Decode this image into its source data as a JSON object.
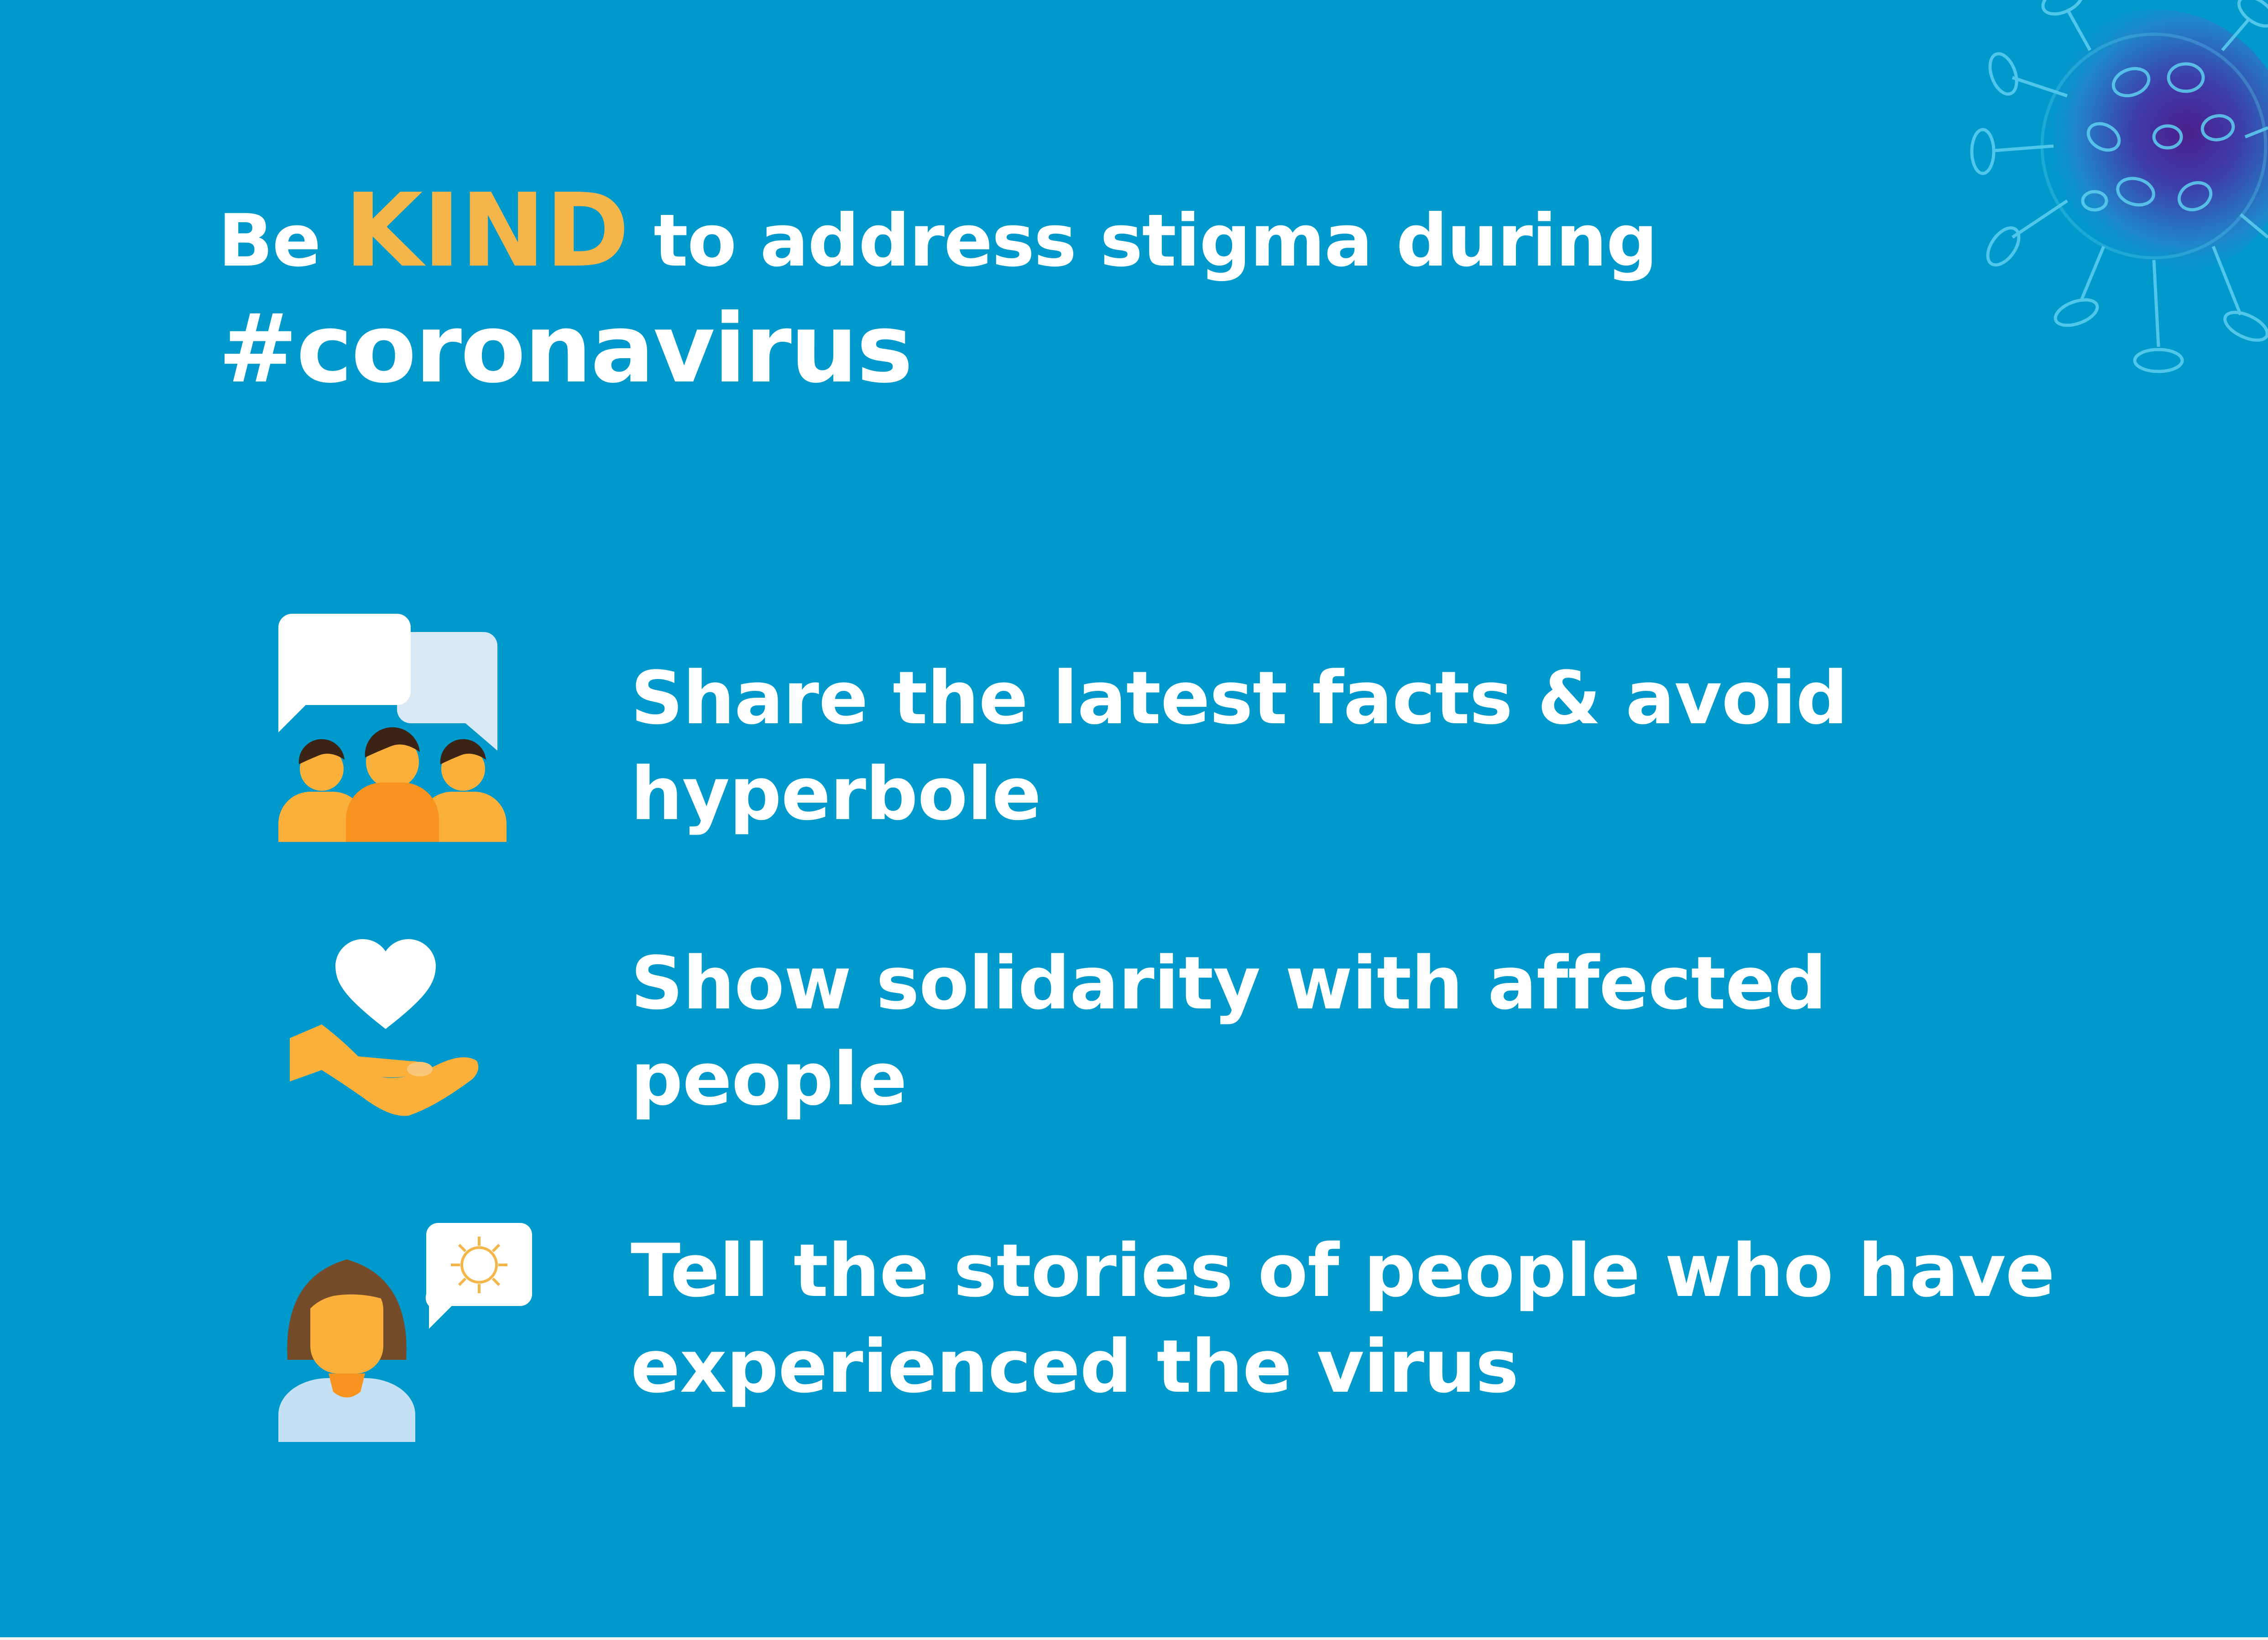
{
  "headline": {
    "prefix": "Be",
    "emphasis": "KIND",
    "suffix": "to address stigma during",
    "hashtag": "#coronavirus"
  },
  "tips": [
    {
      "icon": "group-conversation-icon",
      "line1": "Share the latest facts & avoid",
      "line2": "hyperbole"
    },
    {
      "icon": "heart-in-hand-icon",
      "line1": "Show solidarity with affected",
      "line2": "people"
    },
    {
      "icon": "person-speech-virus-icon",
      "line1": "Tell the stories of people who have",
      "line2": "experienced the virus"
    }
  ],
  "colors": {
    "background": "#0099cc",
    "text": "#ffffff",
    "accent": "#f4b64a",
    "skin": "#fbb03b",
    "shirt": "#f7931e",
    "hair": "#3c2415",
    "bubble_white": "#ffffff",
    "bubble_light": "#d9e8f5",
    "woman_hair": "#754c29",
    "woman_shirt": "#c4e0f5",
    "virus_glow": "#5a2d91"
  }
}
